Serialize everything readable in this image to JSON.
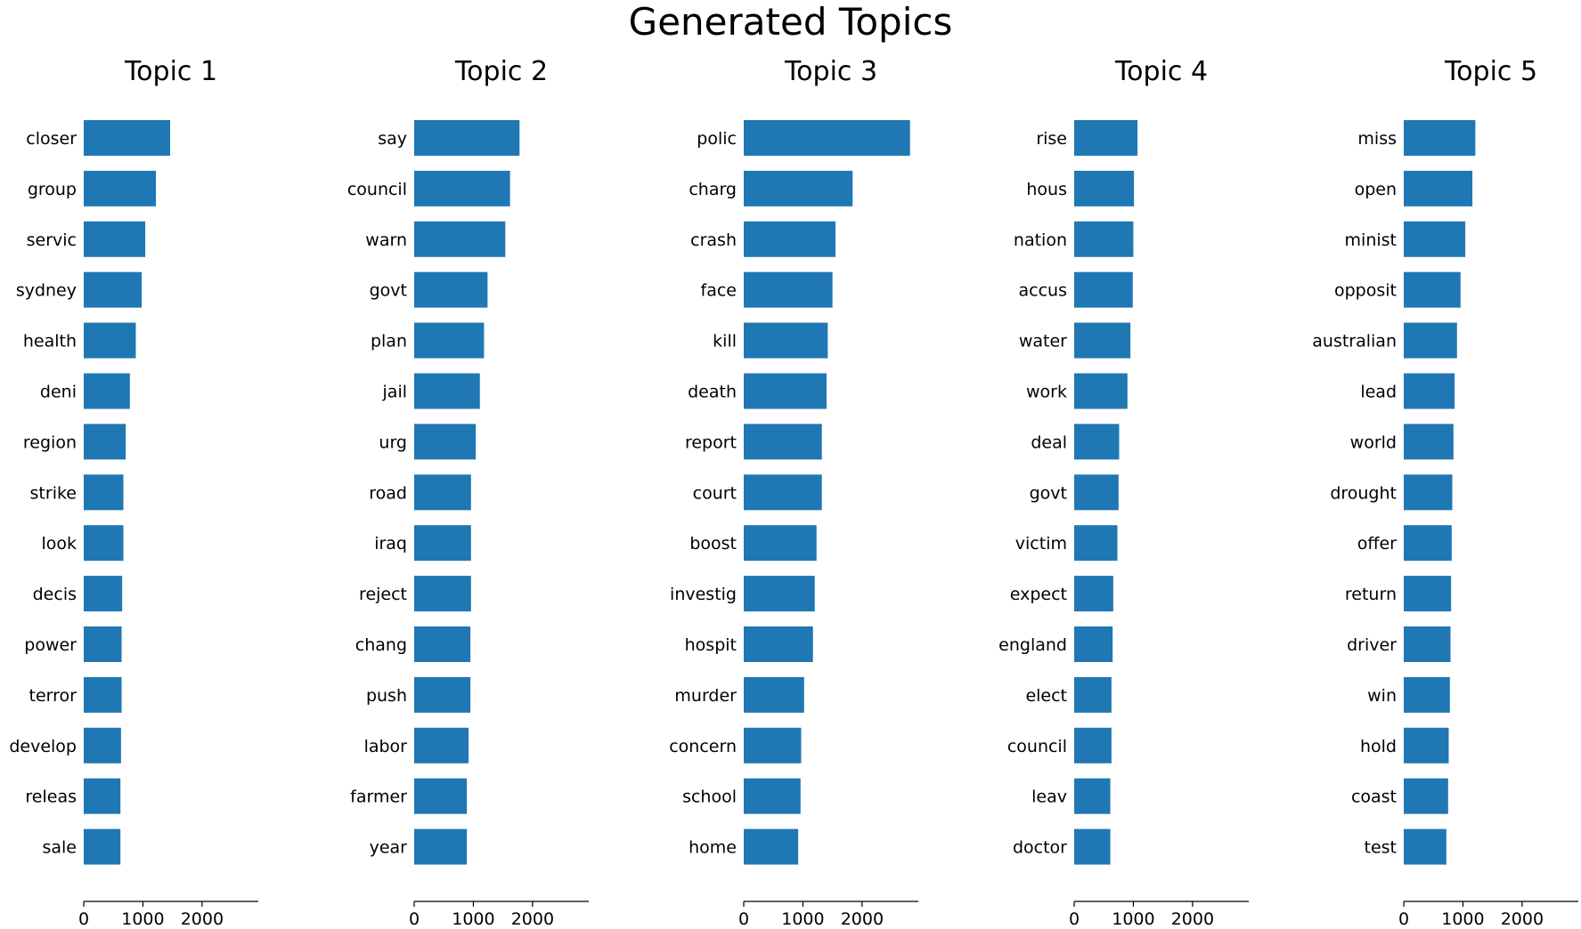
{
  "figure": {
    "title": "Generated Topics"
  },
  "chart_data": [
    {
      "type": "bar",
      "orientation": "horizontal",
      "title": "Topic 1",
      "categories": [
        "closer",
        "group",
        "servic",
        "sydney",
        "health",
        "deni",
        "region",
        "strike",
        "look",
        "decis",
        "power",
        "terror",
        "develop",
        "releas",
        "sale"
      ],
      "values": [
        1460,
        1220,
        1040,
        980,
        880,
        780,
        710,
        670,
        670,
        650,
        640,
        640,
        630,
        620,
        620
      ],
      "xticks": [
        0,
        1000,
        2000
      ],
      "xlim": [
        0,
        2950
      ],
      "color": "#1f77b4"
    },
    {
      "type": "bar",
      "orientation": "horizontal",
      "title": "Topic 2",
      "categories": [
        "say",
        "council",
        "warn",
        "govt",
        "plan",
        "jail",
        "urg",
        "road",
        "iraq",
        "reject",
        "chang",
        "push",
        "labor",
        "farmer",
        "year"
      ],
      "values": [
        1780,
        1620,
        1540,
        1240,
        1180,
        1110,
        1040,
        960,
        960,
        960,
        950,
        950,
        920,
        890,
        890
      ],
      "xticks": [
        0,
        1000,
        2000
      ],
      "xlim": [
        0,
        2950
      ],
      "color": "#1f77b4"
    },
    {
      "type": "bar",
      "orientation": "horizontal",
      "title": "Topic 3",
      "categories": [
        "polic",
        "charg",
        "crash",
        "face",
        "kill",
        "death",
        "report",
        "court",
        "boost",
        "investig",
        "hospit",
        "murder",
        "concern",
        "school",
        "home"
      ],
      "values": [
        2810,
        1840,
        1550,
        1500,
        1420,
        1400,
        1320,
        1320,
        1230,
        1200,
        1170,
        1020,
        970,
        960,
        920
      ],
      "xticks": [
        0,
        1000,
        2000
      ],
      "xlim": [
        0,
        2950
      ],
      "color": "#1f77b4"
    },
    {
      "type": "bar",
      "orientation": "horizontal",
      "title": "Topic 4",
      "categories": [
        "rise",
        "hous",
        "nation",
        "accus",
        "water",
        "work",
        "deal",
        "govt",
        "victim",
        "expect",
        "england",
        "elect",
        "council",
        "leav",
        "doctor"
      ],
      "values": [
        1070,
        1010,
        1000,
        990,
        950,
        900,
        760,
        750,
        730,
        660,
        650,
        630,
        630,
        610,
        610
      ],
      "xticks": [
        0,
        1000,
        2000
      ],
      "xlim": [
        0,
        2950
      ],
      "color": "#1f77b4"
    },
    {
      "type": "bar",
      "orientation": "horizontal",
      "title": "Topic 5",
      "categories": [
        "miss",
        "open",
        "minist",
        "opposit",
        "australian",
        "lead",
        "world",
        "drought",
        "offer",
        "return",
        "driver",
        "win",
        "hold",
        "coast",
        "test"
      ],
      "values": [
        1210,
        1160,
        1040,
        960,
        900,
        860,
        840,
        820,
        810,
        800,
        790,
        780,
        760,
        750,
        720
      ],
      "xticks": [
        0,
        1000,
        2000
      ],
      "xlim": [
        0,
        2950
      ],
      "color": "#1f77b4"
    }
  ]
}
